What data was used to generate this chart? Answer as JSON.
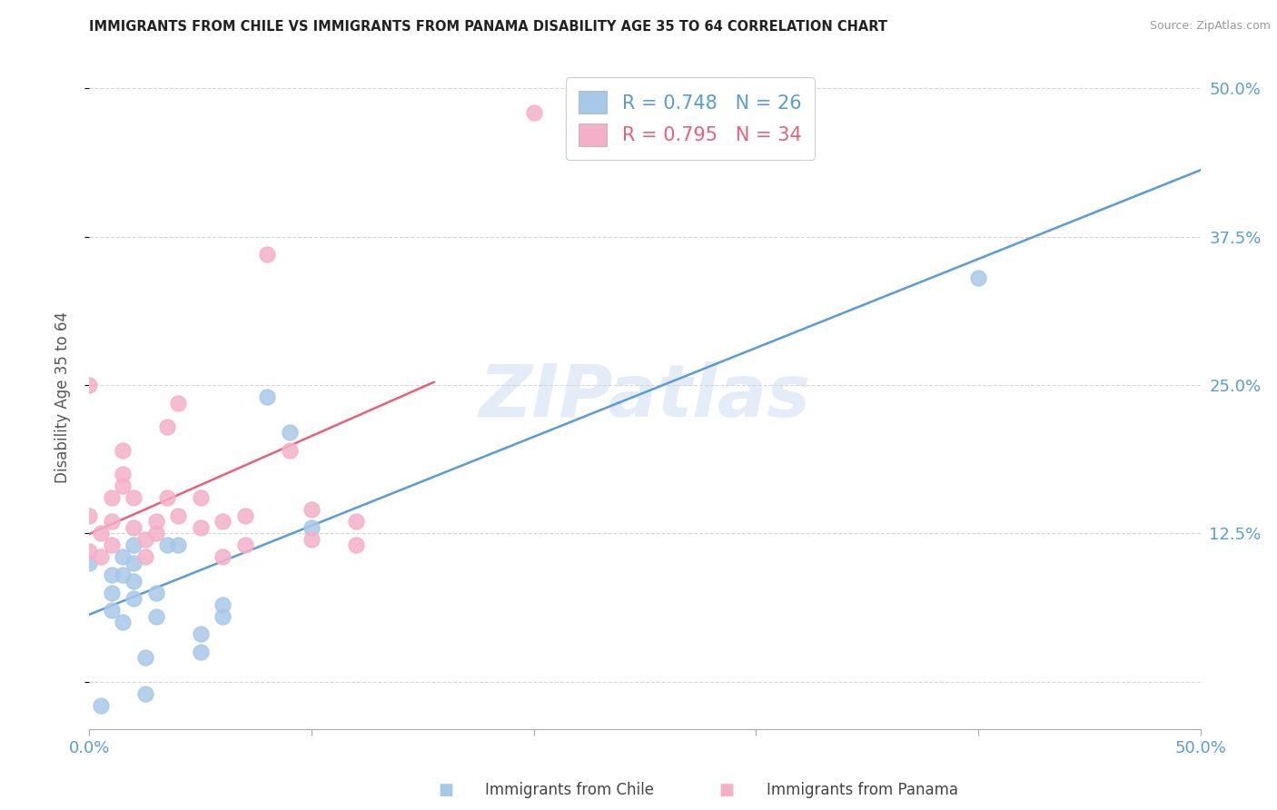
{
  "title": "IMMIGRANTS FROM CHILE VS IMMIGRANTS FROM PANAMA DISABILITY AGE 35 TO 64 CORRELATION CHART",
  "source": "Source: ZipAtlas.com",
  "ylabel": "Disability Age 35 to 64",
  "xlim": [
    0.0,
    0.5
  ],
  "ylim": [
    -0.04,
    0.52
  ],
  "chile_color": "#a8c8e8",
  "panama_color": "#f4b0c8",
  "chile_line_color": "#5b9bd5",
  "panama_line_color": "#e8607a",
  "chile_R": 0.748,
  "chile_N": 26,
  "panama_R": 0.795,
  "panama_N": 34,
  "watermark": "ZIPatlas",
  "legend_label_chile": "Immigrants from Chile",
  "legend_label_panama": "Immigrants from Panama",
  "chile_scatter_x": [
    0.0,
    0.005,
    0.01,
    0.01,
    0.01,
    0.015,
    0.015,
    0.015,
    0.02,
    0.02,
    0.02,
    0.02,
    0.025,
    0.025,
    0.03,
    0.03,
    0.035,
    0.04,
    0.05,
    0.05,
    0.06,
    0.06,
    0.08,
    0.09,
    0.1,
    0.4
  ],
  "chile_scatter_y": [
    0.1,
    -0.02,
    0.06,
    0.075,
    0.09,
    0.05,
    0.09,
    0.105,
    0.07,
    0.085,
    0.1,
    0.115,
    -0.01,
    0.02,
    0.055,
    0.075,
    0.115,
    0.115,
    0.025,
    0.04,
    0.055,
    0.065,
    0.24,
    0.21,
    0.13,
    0.34
  ],
  "panama_scatter_x": [
    0.0,
    0.0,
    0.0,
    0.005,
    0.005,
    0.01,
    0.01,
    0.01,
    0.015,
    0.015,
    0.015,
    0.02,
    0.02,
    0.025,
    0.025,
    0.03,
    0.03,
    0.035,
    0.035,
    0.04,
    0.04,
    0.05,
    0.05,
    0.06,
    0.06,
    0.07,
    0.07,
    0.08,
    0.09,
    0.1,
    0.1,
    0.12,
    0.12,
    0.2
  ],
  "panama_scatter_y": [
    0.11,
    0.14,
    0.25,
    0.105,
    0.125,
    0.115,
    0.135,
    0.155,
    0.165,
    0.175,
    0.195,
    0.13,
    0.155,
    0.105,
    0.12,
    0.125,
    0.135,
    0.155,
    0.215,
    0.14,
    0.235,
    0.13,
    0.155,
    0.105,
    0.135,
    0.115,
    0.14,
    0.36,
    0.195,
    0.12,
    0.145,
    0.115,
    0.135,
    0.48
  ],
  "background_color": "#ffffff",
  "grid_color": "#cccccc",
  "chile_line_x": [
    0.0,
    0.5
  ],
  "panama_line_x": [
    0.0,
    0.155
  ]
}
